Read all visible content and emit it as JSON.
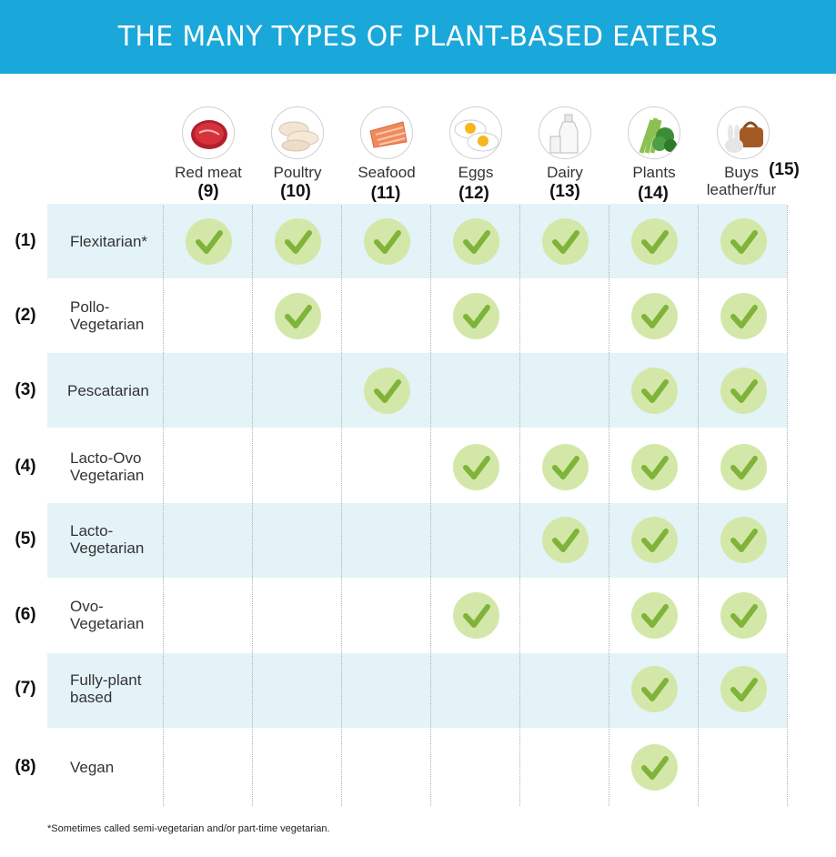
{
  "title": "THE MANY TYPES OF PLANT-BASED EATERS",
  "columns": [
    {
      "label": "Red meat",
      "num": "(9)",
      "icon": "steak-icon"
    },
    {
      "label": "Poultry",
      "num": "(10)",
      "icon": "chicken-breast-icon"
    },
    {
      "label": "Seafood",
      "num": "(11)",
      "icon": "salmon-fillet-icon"
    },
    {
      "label": "Eggs",
      "num": "(12)",
      "icon": "fried-eggs-icon"
    },
    {
      "label": "Dairy",
      "num": "(13)",
      "icon": "milk-bottle-icon"
    },
    {
      "label": "Plants",
      "num": "(14)",
      "icon": "vegetables-icon"
    },
    {
      "label": "Buys\nleather/fur",
      "num": "(15)",
      "icon": "rabbit-handbag-icon"
    }
  ],
  "rows": [
    {
      "num": "(1)",
      "label": "Flexitarian*",
      "checks": [
        true,
        true,
        true,
        true,
        true,
        true,
        true
      ]
    },
    {
      "num": "(2)",
      "label": "Pollo-\nVegetarian",
      "checks": [
        false,
        true,
        false,
        true,
        false,
        true,
        true
      ]
    },
    {
      "num": "(3)",
      "label": "Pescatarian",
      "checks": [
        false,
        false,
        true,
        false,
        false,
        true,
        true
      ]
    },
    {
      "num": "(4)",
      "label": "Lacto-Ovo\nVegetarian",
      "checks": [
        false,
        false,
        false,
        true,
        true,
        true,
        true
      ]
    },
    {
      "num": "(5)",
      "label": "Lacto-\nVegetarian",
      "checks": [
        false,
        false,
        false,
        false,
        true,
        true,
        true
      ]
    },
    {
      "num": "(6)",
      "label": "Ovo-\nVegetarian",
      "checks": [
        false,
        false,
        false,
        true,
        false,
        true,
        true
      ]
    },
    {
      "num": "(7)",
      "label": "Fully-plant\nbased",
      "checks": [
        false,
        false,
        false,
        false,
        false,
        true,
        true
      ]
    },
    {
      "num": "(8)",
      "label": "Vegan",
      "checks": [
        false,
        false,
        false,
        false,
        false,
        true,
        false
      ]
    }
  ],
  "footnote": "*Sometimes called semi-vegetarian and/or part-time vegetarian.",
  "colors": {
    "banner": "#1aa7d9",
    "band": "#e4f3f8",
    "check_bg": "#d3e8a8",
    "check_mark": "#7fb33a"
  }
}
